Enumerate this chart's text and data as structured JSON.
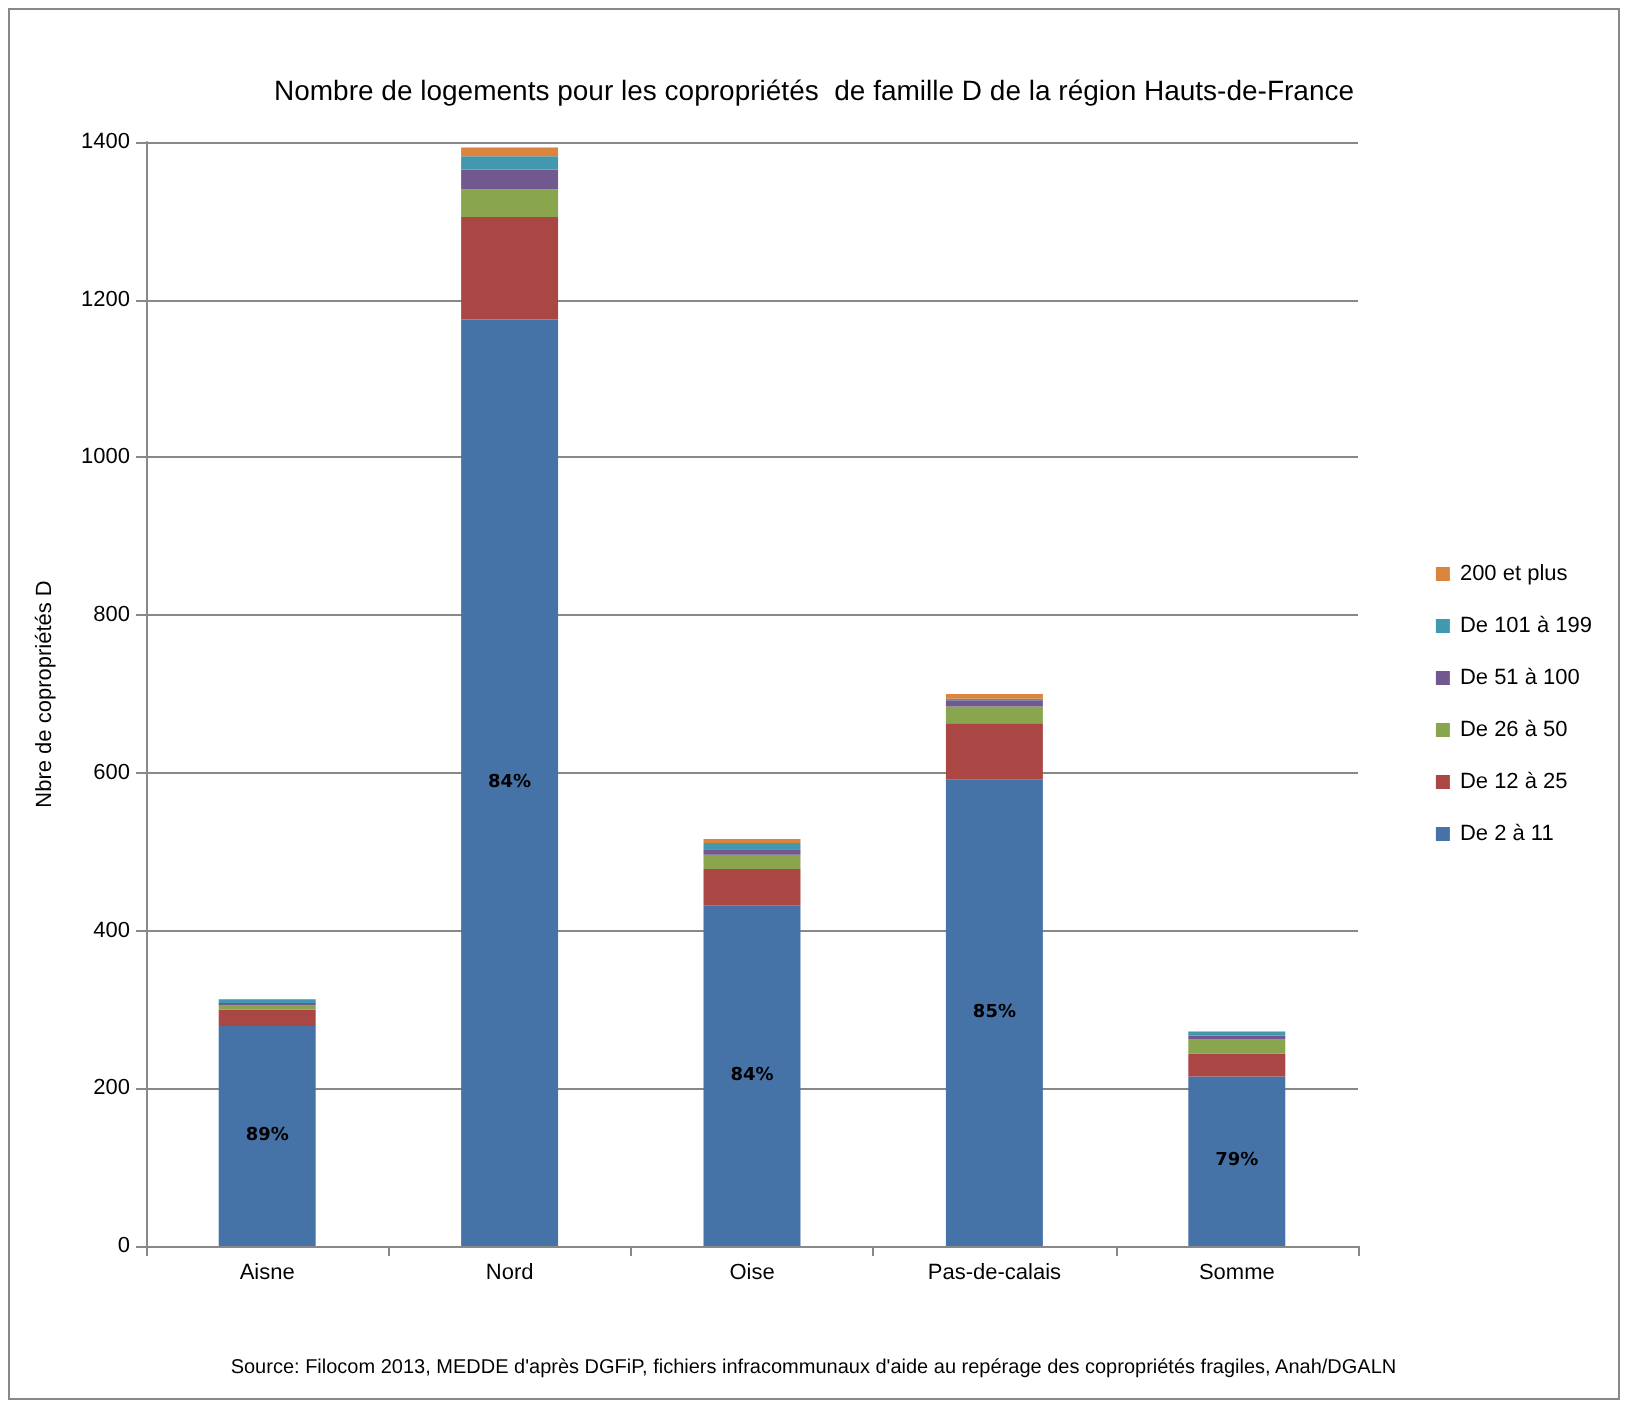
{
  "chart_data": {
    "type": "bar",
    "stacked": true,
    "title": "Nombre de logements pour les copropriétés  de famille D de la région Hauts-de-France",
    "ylabel": "Nbre de copropriétés D",
    "categories": [
      "Aisne",
      "Nord",
      "Oise",
      "Pas-de-calais",
      "Somme"
    ],
    "series": [
      {
        "name": "De 2 à 11",
        "color": "#4572a7",
        "values": [
          279,
          1175,
          432,
          592,
          215
        ]
      },
      {
        "name": "De 12 à 25",
        "color": "#aa4643",
        "values": [
          21,
          130,
          46,
          71,
          29
        ]
      },
      {
        "name": "De 26 à 50",
        "color": "#89a54e",
        "values": [
          5,
          35,
          18,
          21,
          18
        ]
      },
      {
        "name": "De 51 à 100",
        "color": "#71588f",
        "values": [
          3,
          25,
          7,
          8,
          5
        ]
      },
      {
        "name": "De 101 à 199",
        "color": "#4198af",
        "values": [
          5,
          17,
          8,
          2,
          5
        ]
      },
      {
        "name": "200 et plus",
        "color": "#db843d",
        "values": [
          0,
          11,
          5,
          6,
          0
        ]
      }
    ],
    "ylim": [
      0,
      1400
    ],
    "yticks": [
      0,
      200,
      400,
      600,
      800,
      1000,
      1200,
      1400
    ],
    "grid": "y",
    "legend": "right",
    "annotations": [
      "89%",
      "84%",
      "84%",
      "85%",
      "79%",
      "Source: Filocom 2013, MEDDE d'après DGFiP, fichiers infracommunaux d'aide au repérage des copropriétés fragiles, Anah/DGALN"
    ]
  }
}
